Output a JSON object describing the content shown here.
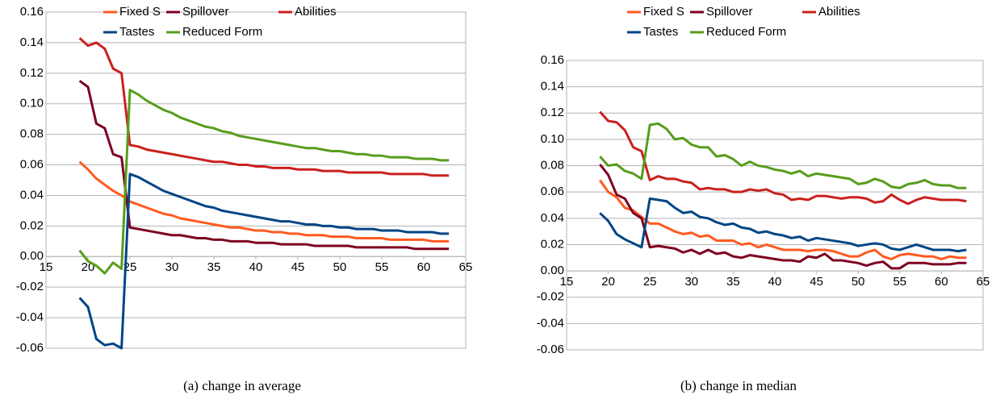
{
  "chart_data": [
    {
      "type": "line",
      "caption": "(a) change in average",
      "x": [
        19,
        20,
        21,
        22,
        23,
        24,
        25,
        26,
        27,
        28,
        29,
        30,
        31,
        32,
        33,
        34,
        35,
        36,
        37,
        38,
        39,
        40,
        41,
        42,
        43,
        44,
        45,
        46,
        47,
        48,
        49,
        50,
        51,
        52,
        53,
        54,
        55,
        56,
        57,
        58,
        59,
        60,
        61,
        62,
        63
      ],
      "xlim": [
        15,
        65
      ],
      "xticks": [
        15,
        20,
        25,
        30,
        35,
        40,
        45,
        50,
        55,
        60,
        65
      ],
      "ylim": [
        -0.06,
        0.16
      ],
      "yticks": [
        -0.06,
        -0.04,
        -0.02,
        {
          "value": 0,
          "label": "0.00"
        },
        0.02,
        0.04,
        0.06,
        0.08,
        {
          "value": 0.1,
          "label": "0.10"
        },
        0.12,
        0.14,
        0.16
      ],
      "grid": true,
      "series": [
        {
          "name": "Fixed S",
          "color": "#ff5a1f",
          "values": [
            0.062,
            0.057,
            0.051,
            0.047,
            0.043,
            0.04,
            0.036,
            0.034,
            0.032,
            0.03,
            0.028,
            0.027,
            0.025,
            0.024,
            0.023,
            0.022,
            0.021,
            0.02,
            0.019,
            0.019,
            0.018,
            0.017,
            0.017,
            0.016,
            0.016,
            0.015,
            0.015,
            0.014,
            0.014,
            0.014,
            0.013,
            0.013,
            0.013,
            0.012,
            0.012,
            0.012,
            0.012,
            0.011,
            0.011,
            0.011,
            0.011,
            0.011,
            0.01,
            0.01,
            0.01
          ]
        },
        {
          "name": "Spillover",
          "color": "#7e0021",
          "values": [
            0.115,
            0.111,
            0.087,
            0.084,
            0.067,
            0.065,
            0.019,
            0.018,
            0.017,
            0.016,
            0.015,
            0.014,
            0.014,
            0.013,
            0.012,
            0.012,
            0.011,
            0.011,
            0.01,
            0.01,
            0.01,
            0.009,
            0.009,
            0.009,
            0.008,
            0.008,
            0.008,
            0.008,
            0.007,
            0.007,
            0.007,
            0.007,
            0.007,
            0.006,
            0.006,
            0.006,
            0.006,
            0.006,
            0.006,
            0.006,
            0.005,
            0.005,
            0.005,
            0.005,
            0.005
          ]
        },
        {
          "name": "Abilities",
          "color": "#c9211e",
          "values": [
            0.143,
            0.138,
            0.14,
            0.136,
            0.123,
            0.12,
            0.073,
            0.072,
            0.07,
            0.069,
            0.068,
            0.067,
            0.066,
            0.065,
            0.064,
            0.063,
            0.062,
            0.062,
            0.061,
            0.06,
            0.06,
            0.059,
            0.059,
            0.058,
            0.058,
            0.058,
            0.057,
            0.057,
            0.057,
            0.056,
            0.056,
            0.056,
            0.055,
            0.055,
            0.055,
            0.055,
            0.055,
            0.054,
            0.054,
            0.054,
            0.054,
            0.054,
            0.053,
            0.053,
            0.053
          ]
        },
        {
          "name": "Tastes",
          "color": "#004586",
          "values": [
            -0.027,
            -0.033,
            -0.054,
            -0.058,
            -0.057,
            -0.06,
            0.054,
            0.052,
            0.049,
            0.046,
            0.043,
            0.041,
            0.039,
            0.037,
            0.035,
            0.033,
            0.032,
            0.03,
            0.029,
            0.028,
            0.027,
            0.026,
            0.025,
            0.024,
            0.023,
            0.023,
            0.022,
            0.021,
            0.021,
            0.02,
            0.02,
            0.019,
            0.019,
            0.018,
            0.018,
            0.018,
            0.017,
            0.017,
            0.017,
            0.016,
            0.016,
            0.016,
            0.016,
            0.015,
            0.015
          ]
        },
        {
          "name": "Reduced Form",
          "color": "#579d1c",
          "values": [
            0.004,
            -0.003,
            -0.006,
            -0.011,
            -0.004,
            -0.008,
            0.109,
            0.106,
            0.102,
            0.099,
            0.096,
            0.094,
            0.091,
            0.089,
            0.087,
            0.085,
            0.084,
            0.082,
            0.081,
            0.079,
            0.078,
            0.077,
            0.076,
            0.075,
            0.074,
            0.073,
            0.072,
            0.071,
            0.071,
            0.07,
            0.069,
            0.069,
            0.068,
            0.067,
            0.067,
            0.066,
            0.066,
            0.065,
            0.065,
            0.065,
            0.064,
            0.064,
            0.064,
            0.063,
            0.063
          ]
        }
      ]
    },
    {
      "type": "line",
      "caption": "(b) change in median",
      "x": [
        19,
        20,
        21,
        22,
        23,
        24,
        25,
        26,
        27,
        28,
        29,
        30,
        31,
        32,
        33,
        34,
        35,
        36,
        37,
        38,
        39,
        40,
        41,
        42,
        43,
        44,
        45,
        46,
        47,
        48,
        49,
        50,
        51,
        52,
        53,
        54,
        55,
        56,
        57,
        58,
        59,
        60,
        61,
        62,
        63
      ],
      "xlim": [
        15,
        65
      ],
      "xticks": [
        15,
        20,
        25,
        30,
        35,
        40,
        45,
        50,
        55,
        60,
        65
      ],
      "ylim": [
        -0.06,
        0.16
      ],
      "yticks": [
        -0.06,
        -0.04,
        -0.02,
        {
          "value": 0,
          "label": "0.00"
        },
        0.02,
        0.04,
        0.06,
        0.08,
        {
          "value": 0.1,
          "label": "0.10"
        },
        0.12,
        0.14,
        0.16
      ],
      "grid": true,
      "series": [
        {
          "name": "Fixed S",
          "color": "#ff5a1f",
          "values": [
            0.069,
            0.06,
            0.056,
            0.048,
            0.046,
            0.041,
            0.036,
            0.036,
            0.033,
            0.03,
            0.028,
            0.029,
            0.026,
            0.027,
            0.023,
            0.023,
            0.023,
            0.02,
            0.021,
            0.018,
            0.02,
            0.018,
            0.016,
            0.016,
            0.016,
            0.015,
            0.016,
            0.016,
            0.015,
            0.013,
            0.011,
            0.011,
            0.014,
            0.016,
            0.011,
            0.009,
            0.012,
            0.013,
            0.012,
            0.011,
            0.011,
            0.009,
            0.011,
            0.01,
            0.01
          ]
        },
        {
          "name": "Spillover",
          "color": "#7e0021",
          "values": [
            0.081,
            0.073,
            0.058,
            0.055,
            0.044,
            0.04,
            0.018,
            0.019,
            0.018,
            0.017,
            0.014,
            0.016,
            0.013,
            0.016,
            0.013,
            0.014,
            0.011,
            0.01,
            0.012,
            0.011,
            0.01,
            0.009,
            0.008,
            0.008,
            0.007,
            0.011,
            0.01,
            0.013,
            0.008,
            0.008,
            0.007,
            0.006,
            0.004,
            0.006,
            0.007,
            0.002,
            0.002,
            0.006,
            0.006,
            0.006,
            0.005,
            0.005,
            0.005,
            0.006,
            0.006
          ]
        },
        {
          "name": "Abilities",
          "color": "#c9211e",
          "values": [
            0.121,
            0.114,
            0.113,
            0.107,
            0.094,
            0.091,
            0.069,
            0.072,
            0.07,
            0.07,
            0.068,
            0.067,
            0.062,
            0.063,
            0.062,
            0.062,
            0.06,
            0.06,
            0.062,
            0.061,
            0.062,
            0.059,
            0.058,
            0.054,
            0.055,
            0.054,
            0.057,
            0.057,
            0.056,
            0.055,
            0.056,
            0.056,
            0.055,
            0.052,
            0.053,
            0.058,
            0.054,
            0.051,
            0.054,
            0.056,
            0.055,
            0.054,
            0.054,
            0.054,
            0.053
          ]
        },
        {
          "name": "Tastes",
          "color": "#004586",
          "values": [
            0.044,
            0.038,
            0.028,
            0.024,
            0.021,
            0.018,
            0.055,
            0.054,
            0.053,
            0.048,
            0.044,
            0.045,
            0.041,
            0.04,
            0.037,
            0.035,
            0.036,
            0.033,
            0.032,
            0.029,
            0.03,
            0.028,
            0.027,
            0.025,
            0.026,
            0.023,
            0.025,
            0.024,
            0.023,
            0.022,
            0.021,
            0.019,
            0.02,
            0.021,
            0.02,
            0.017,
            0.016,
            0.018,
            0.02,
            0.018,
            0.016,
            0.016,
            0.016,
            0.015,
            0.016
          ]
        },
        {
          "name": "Reduced Form",
          "color": "#579d1c",
          "values": [
            0.087,
            0.08,
            0.081,
            0.076,
            0.074,
            0.07,
            0.111,
            0.112,
            0.108,
            0.1,
            0.101,
            0.096,
            0.094,
            0.094,
            0.087,
            0.088,
            0.085,
            0.08,
            0.083,
            0.08,
            0.079,
            0.077,
            0.076,
            0.074,
            0.076,
            0.072,
            0.074,
            0.073,
            0.072,
            0.071,
            0.07,
            0.066,
            0.067,
            0.07,
            0.068,
            0.064,
            0.063,
            0.066,
            0.067,
            0.069,
            0.066,
            0.065,
            0.065,
            0.063,
            0.063
          ]
        }
      ]
    }
  ]
}
